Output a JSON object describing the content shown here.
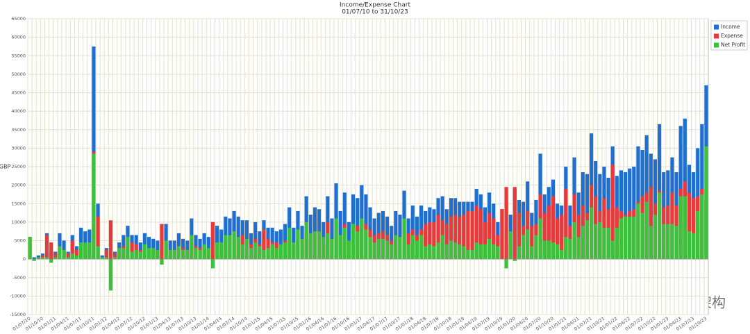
{
  "chart_data": {
    "type": "bar",
    "title": "Income/Expense Chart",
    "subtitle": "01/07/10 to 31/10/23",
    "y_label": "GBP",
    "watermark": "公众号 · 人生架构",
    "categories": [
      "01/07/10",
      null,
      null,
      "01/10/10",
      null,
      null,
      "01/01/11",
      null,
      null,
      "01/04/11",
      null,
      null,
      "01/07/11",
      null,
      null,
      "01/10/11",
      null,
      null,
      "01/01/12",
      null,
      null,
      "01/04/12",
      null,
      null,
      "01/07/12",
      null,
      null,
      "01/10/12",
      null,
      null,
      "01/01/13",
      null,
      null,
      "01/04/13",
      null,
      null,
      "01/07/13",
      null,
      null,
      "01/10/13",
      null,
      null,
      "01/01/14",
      null,
      null,
      "01/04/14",
      null,
      null,
      "01/07/14",
      null,
      null,
      "01/10/14",
      null,
      null,
      "01/01/15",
      null,
      null,
      "01/04/15",
      null,
      null,
      "01/07/15",
      null,
      null,
      "01/10/15",
      null,
      null,
      "01/01/16",
      null,
      null,
      "01/04/16",
      null,
      null,
      "01/07/16",
      null,
      null,
      "01/10/16",
      null,
      null,
      "01/01/17",
      null,
      null,
      "01/04/17",
      null,
      null,
      "01/07/17",
      null,
      null,
      "01/10/17",
      null,
      null,
      "01/01/18",
      null,
      null,
      "01/04/18",
      null,
      null,
      "01/07/18",
      null,
      null,
      "01/10/18",
      null,
      null,
      "01/01/19",
      null,
      null,
      "01/04/19",
      null,
      null,
      "01/07/19",
      null,
      null,
      "01/10/19",
      null,
      null,
      "01/01/20",
      null,
      null,
      "01/04/20",
      null,
      null,
      "01/07/20",
      null,
      null,
      "01/10/20",
      null,
      null,
      "01/01/21",
      null,
      null,
      "01/04/21",
      null,
      null,
      "01/07/21",
      null,
      null,
      "01/10/21",
      null,
      null,
      "01/01/22",
      null,
      null,
      "01/04/22",
      null,
      null,
      "01/07/22",
      null,
      null,
      "01/10/22",
      null,
      null,
      "01/01/23",
      null,
      null,
      "01/04/23",
      null,
      null,
      "01/07/23",
      null,
      null,
      "01/10/23"
    ],
    "series": [
      {
        "name": "Income",
        "color": "#1f6fd1",
        "values": [
          6000,
          500,
          1000,
          1500,
          7000,
          2000,
          2000,
          7000,
          5000,
          2000,
          6500,
          3500,
          8500,
          7500,
          8000,
          57500,
          15000,
          1000,
          3000,
          500,
          2000,
          4500,
          6500,
          9000,
          6500,
          6500,
          4500,
          7000,
          6000,
          5500,
          5000,
          4500,
          9500,
          5000,
          5000,
          7000,
          5500,
          5000,
          11000,
          6500,
          5500,
          7000,
          6000,
          10000,
          9000,
          8000,
          11500,
          11000,
          13000,
          11500,
          10500,
          10500,
          7000,
          10000,
          7500,
          10500,
          8500,
          8500,
          7500,
          8000,
          9500,
          14000,
          8500,
          13000,
          9000,
          17000,
          12000,
          14000,
          13500,
          10000,
          17000,
          11000,
          20500,
          13000,
          18000,
          10000,
          17500,
          16500,
          20000,
          17500,
          14000,
          11000,
          12500,
          13000,
          11500,
          9000,
          13000,
          12000,
          18500,
          11000,
          14500,
          11500,
          14500,
          13000,
          14000,
          13500,
          16500,
          17000,
          13500,
          16500,
          16500,
          15500,
          15500,
          15500,
          15500,
          19000,
          17500,
          14000,
          18000,
          15000,
          10000,
          13500,
          17000,
          12000,
          19000,
          16000,
          15500,
          21000,
          12500,
          16000,
          28500,
          17500,
          19500,
          21500,
          15000,
          14500,
          25000,
          14500,
          27500,
          18000,
          23500,
          23000,
          34000,
          26500,
          23000,
          25000,
          22000,
          30500,
          22500,
          24000,
          23500,
          24500,
          25000,
          30500,
          29500,
          33500,
          28500,
          27000,
          36500,
          23500,
          24000,
          27500,
          23500,
          36000,
          38000,
          25500,
          23500,
          30000,
          36500,
          47000
        ]
      },
      {
        "name": "Expense",
        "color": "#e83a3a",
        "values": [
          6000,
          0,
          500,
          1000,
          6500,
          4500,
          1500,
          3500,
          2500,
          1500,
          5000,
          2500,
          4000,
          3000,
          3500,
          29000,
          11500,
          500,
          2500,
          10500,
          1500,
          1500,
          3500,
          3000,
          4500,
          4000,
          2500,
          3000,
          3000,
          2500,
          2500,
          9500,
          4500,
          2500,
          2500,
          3500,
          3000,
          2500,
          4500,
          3500,
          3000,
          3000,
          3000,
          10000,
          4500,
          3500,
          5000,
          4500,
          5500,
          5500,
          6500,
          5000,
          4000,
          5500,
          4000,
          8000,
          5500,
          4500,
          4500,
          4000,
          5000,
          5500,
          4000,
          5000,
          3500,
          7000,
          5000,
          6500,
          6000,
          4000,
          10000,
          5500,
          9500,
          6500,
          9500,
          5000,
          8000,
          9000,
          9000,
          9500,
          8000,
          6500,
          7000,
          7500,
          6500,
          5000,
          6500,
          6000,
          7500,
          7000,
          8000,
          6500,
          8000,
          9500,
          10000,
          10000,
          12000,
          10500,
          9500,
          11500,
          12000,
          11500,
          12000,
          13000,
          13000,
          14500,
          13500,
          10000,
          12500,
          11000,
          6500,
          13500,
          19500,
          4500,
          19500,
          12500,
          9000,
          13000,
          9000,
          9500,
          17500,
          12500,
          14500,
          17000,
          11000,
          12000,
          19000,
          9000,
          17500,
          12000,
          14500,
          12500,
          20000,
          17000,
          13000,
          16500,
          13500,
          25500,
          14000,
          13000,
          12000,
          13000,
          13500,
          15500,
          17000,
          18000,
          19500,
          15000,
          18500,
          14000,
          14500,
          18000,
          14500,
          19000,
          21000,
          18000,
          16500,
          17000,
          19000,
          16500
        ]
      },
      {
        "name": "Net Profit",
        "color": "#3cc13c",
        "values": [
          6000,
          -500,
          500,
          500,
          500,
          -1000,
          500,
          3500,
          2500,
          500,
          1500,
          1000,
          4500,
          4500,
          4500,
          28500,
          3500,
          500,
          500,
          -8500,
          500,
          3000,
          3000,
          6000,
          2000,
          2500,
          2000,
          4000,
          3000,
          3000,
          2500,
          -1500,
          5000,
          2500,
          2500,
          3500,
          2500,
          2500,
          6500,
          3000,
          2500,
          4000,
          3000,
          -2500,
          4500,
          4500,
          6500,
          6500,
          7500,
          6000,
          4000,
          5500,
          3000,
          4500,
          3500,
          2500,
          3000,
          4000,
          3000,
          4000,
          4500,
          8500,
          4500,
          8000,
          5500,
          10000,
          7000,
          7500,
          7500,
          6000,
          7000,
          5500,
          11000,
          6500,
          8500,
          5000,
          9500,
          7500,
          11000,
          8000,
          6000,
          4500,
          5500,
          5500,
          5000,
          4000,
          6500,
          6000,
          11000,
          4000,
          6500,
          5000,
          6500,
          3500,
          4000,
          3500,
          4500,
          6500,
          4000,
          5000,
          4500,
          4000,
          3500,
          2500,
          2500,
          4500,
          4000,
          4000,
          5500,
          4000,
          3500,
          0,
          -2500,
          7500,
          -500,
          3500,
          6500,
          8000,
          3500,
          6500,
          11000,
          5000,
          5000,
          4500,
          4000,
          2500,
          6000,
          5500,
          10000,
          6000,
          9000,
          10500,
          14000,
          9500,
          10000,
          8500,
          8500,
          5000,
          8500,
          11000,
          11500,
          11500,
          11500,
          15000,
          12500,
          15500,
          9000,
          12000,
          18000,
          9500,
          9500,
          9500,
          9000,
          17000,
          17000,
          7500,
          7000,
          13000,
          17500,
          30500
        ]
      }
    ],
    "ylim": [
      -15000,
      65000
    ],
    "yticks": [
      -15000,
      -10000,
      -5000,
      0,
      5000,
      10000,
      15000,
      20000,
      25000,
      30000,
      35000,
      40000,
      45000,
      50000,
      55000,
      60000,
      65000
    ],
    "grid": true,
    "legend": "top-right"
  }
}
